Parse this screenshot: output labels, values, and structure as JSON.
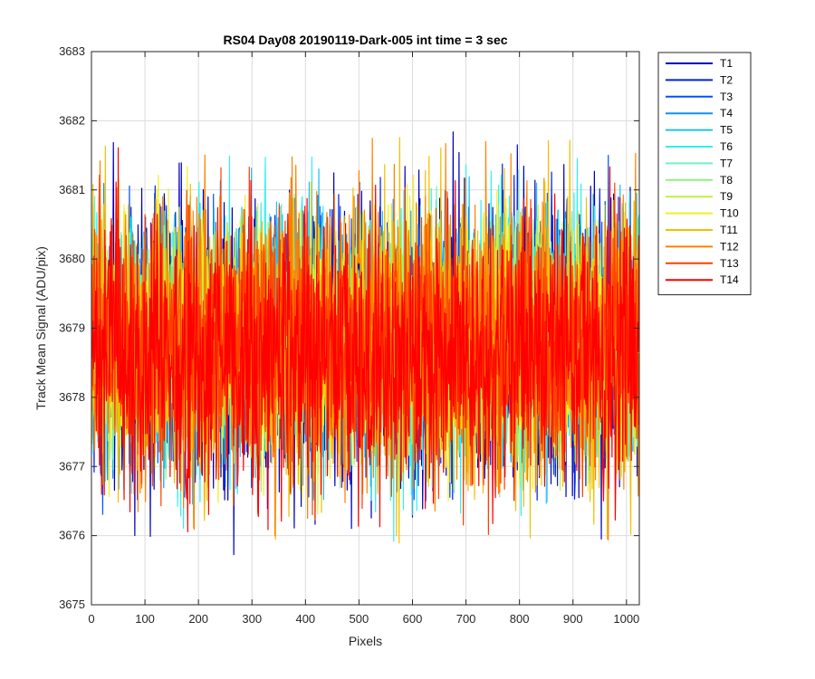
{
  "chart_data": {
    "type": "line",
    "title": "RS04 Day08 20190119-Dark-005 int time = 3 sec",
    "xlabel": "Pixels",
    "ylabel": "Track Mean Signal (ADU/pix)",
    "xlim": [
      0,
      1024
    ],
    "ylim": [
      3675,
      3683
    ],
    "xticks": [
      0,
      100,
      200,
      300,
      400,
      500,
      600,
      700,
      800,
      900,
      1000
    ],
    "yticks": [
      3675,
      3676,
      3677,
      3678,
      3679,
      3680,
      3681,
      3682,
      3683
    ],
    "grid": true,
    "legend_position": "outside-top-right",
    "noise_note": "Each series is dense pixel-to-pixel noise over 1024 pixels; values summarised by mean and spread.",
    "series": [
      {
        "name": "T1",
        "color": "#0000b8",
        "mean": 3678.8,
        "min": 3675.3,
        "max": 3682.4
      },
      {
        "name": "T2",
        "color": "#0020e0",
        "mean": 3678.8,
        "min": 3675.3,
        "max": 3681.7
      },
      {
        "name": "T3",
        "color": "#0050ff",
        "mean": 3678.8,
        "min": 3675.3,
        "max": 3681.5
      },
      {
        "name": "T4",
        "color": "#1090f0",
        "mean": 3678.8,
        "min": 3675.1,
        "max": 3681.4
      },
      {
        "name": "T5",
        "color": "#20c0f0",
        "mean": 3678.8,
        "min": 3675.6,
        "max": 3681.6
      },
      {
        "name": "T6",
        "color": "#30f0f0",
        "mean": 3678.8,
        "min": 3675.6,
        "max": 3682.3
      },
      {
        "name": "T7",
        "color": "#70f0c0",
        "mean": 3678.8,
        "min": 3676.0,
        "max": 3681.3
      },
      {
        "name": "T8",
        "color": "#90f080",
        "mean": 3678.8,
        "min": 3676.0,
        "max": 3681.3
      },
      {
        "name": "T9",
        "color": "#c0f040",
        "mean": 3678.8,
        "min": 3675.9,
        "max": 3681.2
      },
      {
        "name": "T10",
        "color": "#f0f020",
        "mean": 3678.8,
        "min": 3675.9,
        "max": 3682.2
      },
      {
        "name": "T11",
        "color": "#f0c000",
        "mean": 3678.8,
        "min": 3675.5,
        "max": 3682.4
      },
      {
        "name": "T12",
        "color": "#ff8000",
        "mean": 3678.8,
        "min": 3675.3,
        "max": 3682.1
      },
      {
        "name": "T13",
        "color": "#ff4000",
        "mean": 3678.8,
        "min": 3675.3,
        "max": 3681.7
      },
      {
        "name": "T14",
        "color": "#ff0000",
        "mean": 3678.6,
        "min": 3675.2,
        "max": 3681.9
      }
    ]
  }
}
